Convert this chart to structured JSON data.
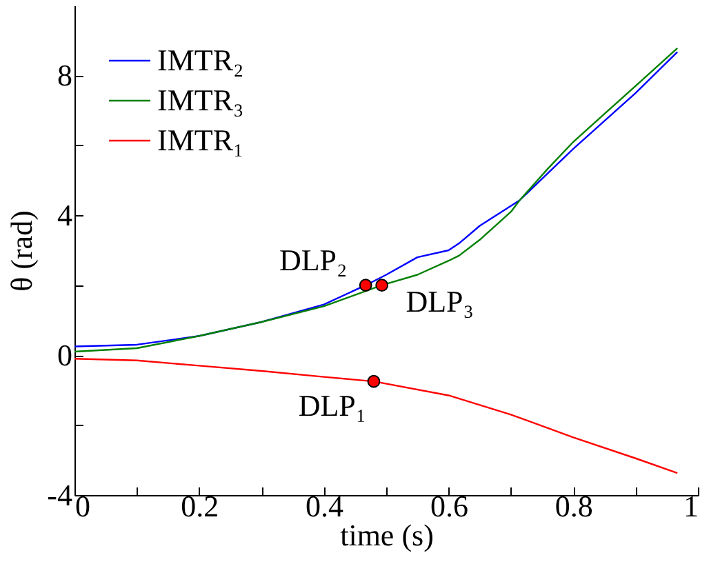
{
  "chart_data": {
    "type": "line",
    "xlabel": "time (s)",
    "ylabel": "θ (rad)",
    "xlim": [
      0,
      1
    ],
    "xticks": [
      0,
      {
        "value": 0.1,
        "label": null
      },
      0.2,
      {
        "value": 0.3,
        "label": null
      },
      0.4,
      {
        "value": 0.5,
        "label": null
      },
      0.6,
      {
        "value": 0.7,
        "label": null
      },
      0.8,
      {
        "value": 0.9,
        "label": null
      },
      1
    ],
    "ylim": [
      -4,
      10
    ],
    "yticks": [
      -4,
      {
        "value": -2,
        "label": null
      },
      0,
      {
        "value": 2,
        "label": null
      },
      4,
      {
        "value": 6,
        "label": null
      },
      8
    ],
    "legend": "top left",
    "grid": false,
    "marker": "none",
    "line_style": "solid",
    "series": [
      {
        "name": "IMTR₂",
        "color": "#0000ff",
        "x": [
          0,
          0.1,
          0.2,
          0.3,
          0.4,
          0.467,
          0.5,
          0.55,
          0.6,
          0.617,
          0.65,
          0.714,
          0.759,
          0.8,
          0.85,
          0.9,
          0.967
        ],
        "values": [
          0.25,
          0.3,
          0.55,
          0.95,
          1.45,
          2.0,
          2.3,
          2.8,
          3.0,
          3.2,
          3.7,
          4.43,
          5.2,
          5.9,
          6.7,
          7.5,
          8.67
        ]
      },
      {
        "name": "IMTR₃",
        "color": "#008000",
        "x": [
          0,
          0.1,
          0.2,
          0.3,
          0.4,
          0.493,
          0.55,
          0.6,
          0.617,
          0.65,
          0.7,
          0.714,
          0.759,
          0.8,
          0.85,
          0.9,
          0.967
        ],
        "values": [
          0.1,
          0.2,
          0.55,
          0.95,
          1.4,
          2.0,
          2.3,
          2.7,
          2.85,
          3.3,
          4.1,
          4.43,
          5.33,
          6.1,
          6.9,
          7.7,
          8.78
        ]
      },
      {
        "name": "IMTR₁",
        "color": "#ff0000",
        "x": [
          0,
          0.1,
          0.2,
          0.3,
          0.4,
          0.48,
          0.6,
          0.7,
          0.8,
          0.9,
          0.967
        ],
        "values": [
          -0.1,
          -0.15,
          -0.3,
          -0.45,
          -0.62,
          -0.75,
          -1.15,
          -1.7,
          -2.35,
          -2.95,
          -3.37
        ]
      },
      {
        "type": "scatter",
        "marker": "circle",
        "color": "#ff0000",
        "x": [
          0.467,
          0.493,
          0.48
        ],
        "values": [
          2.0,
          2.0,
          -0.75
        ]
      }
    ],
    "annotations": [
      {
        "text": "DLP₂",
        "x": 0.467,
        "y": 2.0
      },
      {
        "text": "DLP₃",
        "x": 0.493,
        "y": 2.0
      },
      {
        "text": "DLP₁",
        "x": 0.48,
        "y": -0.75
      }
    ]
  }
}
